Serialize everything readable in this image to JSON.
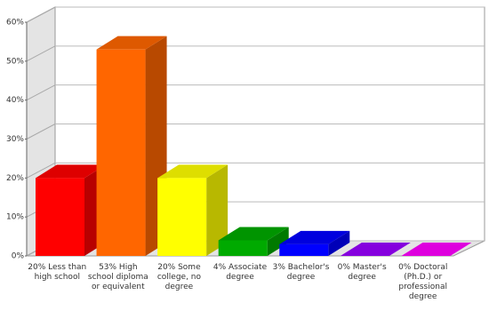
{
  "chart_data": {
    "type": "bar3d",
    "categories": [
      "20% Less than high school",
      "53% High school diploma or equivalent",
      "20% Some college, no degree",
      "4% Associate degree",
      "3% Bachelor's degree",
      "0% Master's degree",
      "0% Doctoral (Ph.D.) or professional degree"
    ],
    "values": [
      20,
      53,
      20,
      4,
      3,
      0,
      0
    ],
    "colors": [
      "#ff0000",
      "#ff6600",
      "#ffff00",
      "#00aa00",
      "#0000ff",
      "#9900ff",
      "#ff00ff"
    ],
    "ylim": [
      0,
      60
    ],
    "yticks": [
      {
        "value": 0,
        "label": "0%"
      },
      {
        "value": 10,
        "label": "10%"
      },
      {
        "value": 20,
        "label": "20%"
      },
      {
        "value": 30,
        "label": "30%"
      },
      {
        "value": 40,
        "label": "40%"
      },
      {
        "value": 50,
        "label": "50%"
      },
      {
        "value": 60,
        "label": "60%"
      }
    ],
    "grid": true
  }
}
